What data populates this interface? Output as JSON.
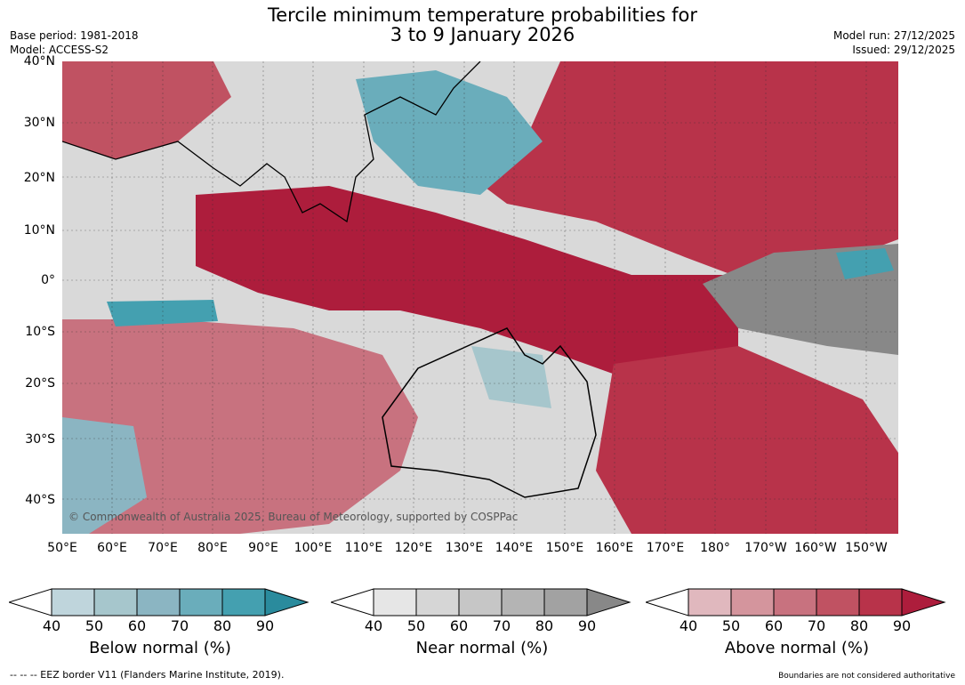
{
  "title": {
    "line1": "Tercile minimum temperature probabilities for",
    "line2": "3 to 9 January 2026"
  },
  "meta_left": {
    "base_period": "Base period: 1981-2018",
    "model": "Model: ACCESS-S2"
  },
  "meta_right": {
    "model_run": "Model run: 27/12/2025",
    "issued": "Issued: 29/12/2025"
  },
  "map": {
    "latitude_labels": [
      "40°N",
      "30°N",
      "20°N",
      "10°N",
      "0°",
      "10°S",
      "20°S",
      "30°S",
      "40°S"
    ],
    "longitude_labels": [
      "50°E",
      "60°E",
      "70°E",
      "80°E",
      "90°E",
      "100°E",
      "110°E",
      "120°E",
      "130°E",
      "140°E",
      "150°E",
      "160°E",
      "170°E",
      "180°",
      "170°W",
      "160°W",
      "150°W"
    ],
    "copyright": "© Commonwealth of Australia 2025, Bureau of Meteorology, supported by COSPPac"
  },
  "legends": [
    {
      "title": "Below normal (%)",
      "ticks": [
        "40",
        "50",
        "60",
        "70",
        "80",
        "90"
      ],
      "colors": [
        "#ffffff",
        "#bfd5dc",
        "#a6c6cc",
        "#8bb5c2",
        "#6aadbb",
        "#44a0b0",
        "#2a8b9d"
      ]
    },
    {
      "title": "Near normal (%)",
      "ticks": [
        "40",
        "50",
        "60",
        "70",
        "80",
        "90"
      ],
      "colors": [
        "#ffffff",
        "#e6e6e6",
        "#d6d6d6",
        "#c6c6c6",
        "#b4b4b4",
        "#a2a2a2",
        "#888888"
      ]
    },
    {
      "title": "Above normal (%)",
      "ticks": [
        "40",
        "50",
        "60",
        "70",
        "80",
        "90"
      ],
      "colors": [
        "#ffffff",
        "#e0b8be",
        "#d4959d",
        "#c8727f",
        "#c05262",
        "#b8334a",
        "#ad1d3c"
      ]
    }
  ],
  "footnotes": {
    "left": "-- -- -- EEZ border V11 (Flanders Marine Institute, 2019).",
    "right": "Boundaries are not considered authoritative"
  }
}
